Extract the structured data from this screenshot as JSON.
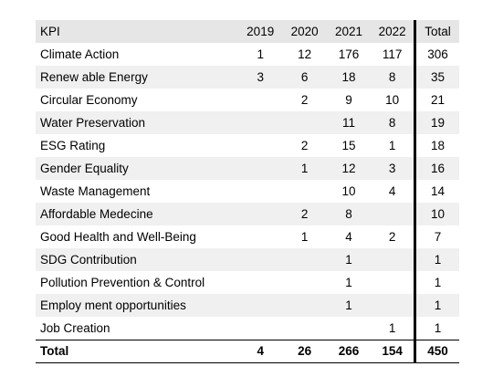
{
  "table": {
    "headers": [
      "KPI",
      "2019",
      "2020",
      "2021",
      "2022",
      "Total"
    ],
    "rows": [
      {
        "kpi": "Climate Action",
        "v2019": "1",
        "v2020": "12",
        "v2021": "176",
        "v2022": "117",
        "total": "306"
      },
      {
        "kpi": "Renew able Energy",
        "v2019": "3",
        "v2020": "6",
        "v2021": "18",
        "v2022": "8",
        "total": "35"
      },
      {
        "kpi": "Circular Economy",
        "v2019": "",
        "v2020": "2",
        "v2021": "9",
        "v2022": "10",
        "total": "21"
      },
      {
        "kpi": "Water Preservation",
        "v2019": "",
        "v2020": "",
        "v2021": "11",
        "v2022": "8",
        "total": "19"
      },
      {
        "kpi": "ESG Rating",
        "v2019": "",
        "v2020": "2",
        "v2021": "15",
        "v2022": "1",
        "total": "18"
      },
      {
        "kpi": "Gender Equality",
        "v2019": "",
        "v2020": "1",
        "v2021": "12",
        "v2022": "3",
        "total": "16"
      },
      {
        "kpi": "Waste Management",
        "v2019": "",
        "v2020": "",
        "v2021": "10",
        "v2022": "4",
        "total": "14"
      },
      {
        "kpi": "Affordable Medecine",
        "v2019": "",
        "v2020": "2",
        "v2021": "8",
        "v2022": "",
        "total": "10"
      },
      {
        "kpi": "Good Health and Well-Being",
        "v2019": "",
        "v2020": "1",
        "v2021": "4",
        "v2022": "2",
        "total": "7"
      },
      {
        "kpi": "SDG Contribution",
        "v2019": "",
        "v2020": "",
        "v2021": "1",
        "v2022": "",
        "total": "1"
      },
      {
        "kpi": "Pollution Prevention & Control",
        "v2019": "",
        "v2020": "",
        "v2021": "1",
        "v2022": "",
        "total": "1"
      },
      {
        "kpi": "Employ ment opportunities",
        "v2019": "",
        "v2020": "",
        "v2021": "1",
        "v2022": "",
        "total": "1"
      },
      {
        "kpi": "Job Creation",
        "v2019": "",
        "v2020": "",
        "v2021": "",
        "v2022": "1",
        "total": "1"
      }
    ],
    "totals": {
      "label": "Total",
      "v2019": "4",
      "v2020": "26",
      "v2021": "266",
      "v2022": "154",
      "total": "450"
    }
  },
  "colors": {
    "header_bg": "#e6e6e6",
    "band_bg": "#f0f0f0",
    "rule": "#000000"
  }
}
